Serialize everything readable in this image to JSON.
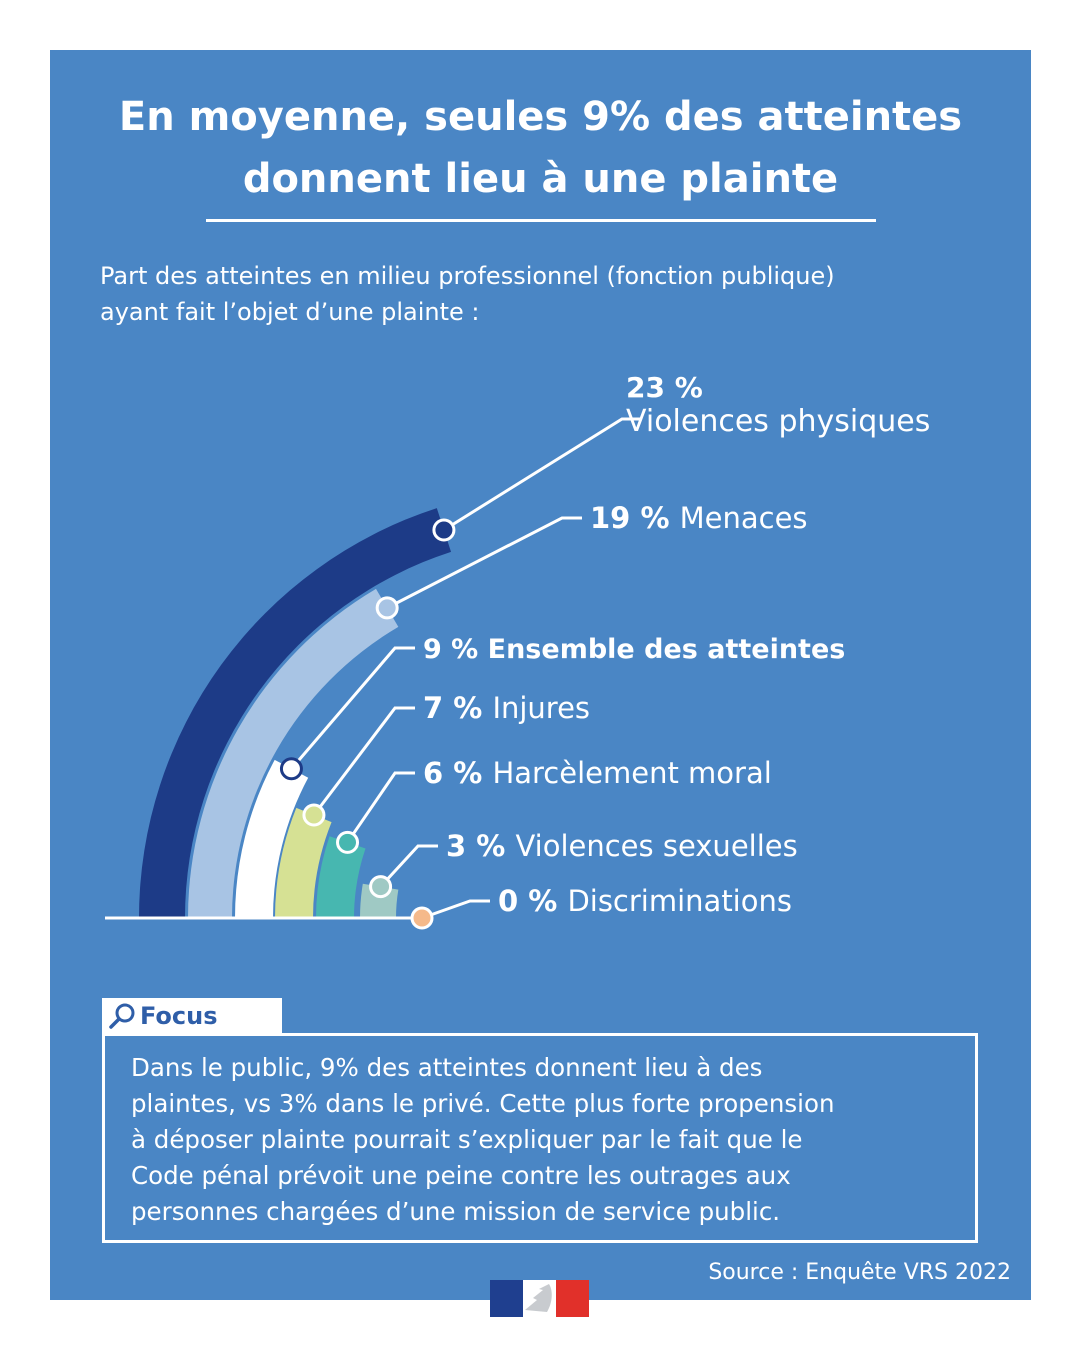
{
  "title_line1": "En moyenne, seules 9% des atteintes",
  "title_line2": "donnent lieu à une plainte",
  "subtitle_line1": "Part des atteintes en milieu professionnel (fonction publique)",
  "subtitle_line2": "ayant fait l’objet d’une plainte :",
  "chart_data": {
    "type": "radial-bar",
    "unit": "%",
    "series": [
      {
        "value_label": "23 %",
        "name": "Violences physiques",
        "value": 23,
        "color": "#1d3b87"
      },
      {
        "value_label": "19 %",
        "name": "Menaces",
        "value": 19,
        "color": "#a8c4e4"
      },
      {
        "value_label": "9 %",
        "name": "Ensemble des atteintes",
        "value": 9,
        "color": "#ffffff"
      },
      {
        "value_label": "7 %",
        "name": "Injures",
        "value": 7,
        "color": "#d6e194"
      },
      {
        "value_label": "6 %",
        "name": "Harcèlement moral",
        "value": 6,
        "color": "#47b7b0"
      },
      {
        "value_label": "3 %",
        "name": "Violences sexuelles",
        "value": 3,
        "color": "#9fc9c4"
      },
      {
        "value_label": "0 %",
        "name": "Discriminations",
        "value": 0,
        "color": "#f5b98a"
      }
    ]
  },
  "focus": {
    "label": "Focus",
    "line1": "Dans le public, 9% des atteintes donnent lieu à des",
    "line2": "plaintes, vs 3% dans le privé. Cette plus forte propension",
    "line3": "à déposer plainte pourrait s’expliquer par le fait que le",
    "line4": "Code pénal prévoit une peine contre les outrages aux",
    "line5": "personnes chargées d’une mission de service public."
  },
  "source": "Source : Enquête VRS 2022",
  "icons": {
    "focus": "magnifier-icon",
    "logo": "marianne-logo"
  }
}
